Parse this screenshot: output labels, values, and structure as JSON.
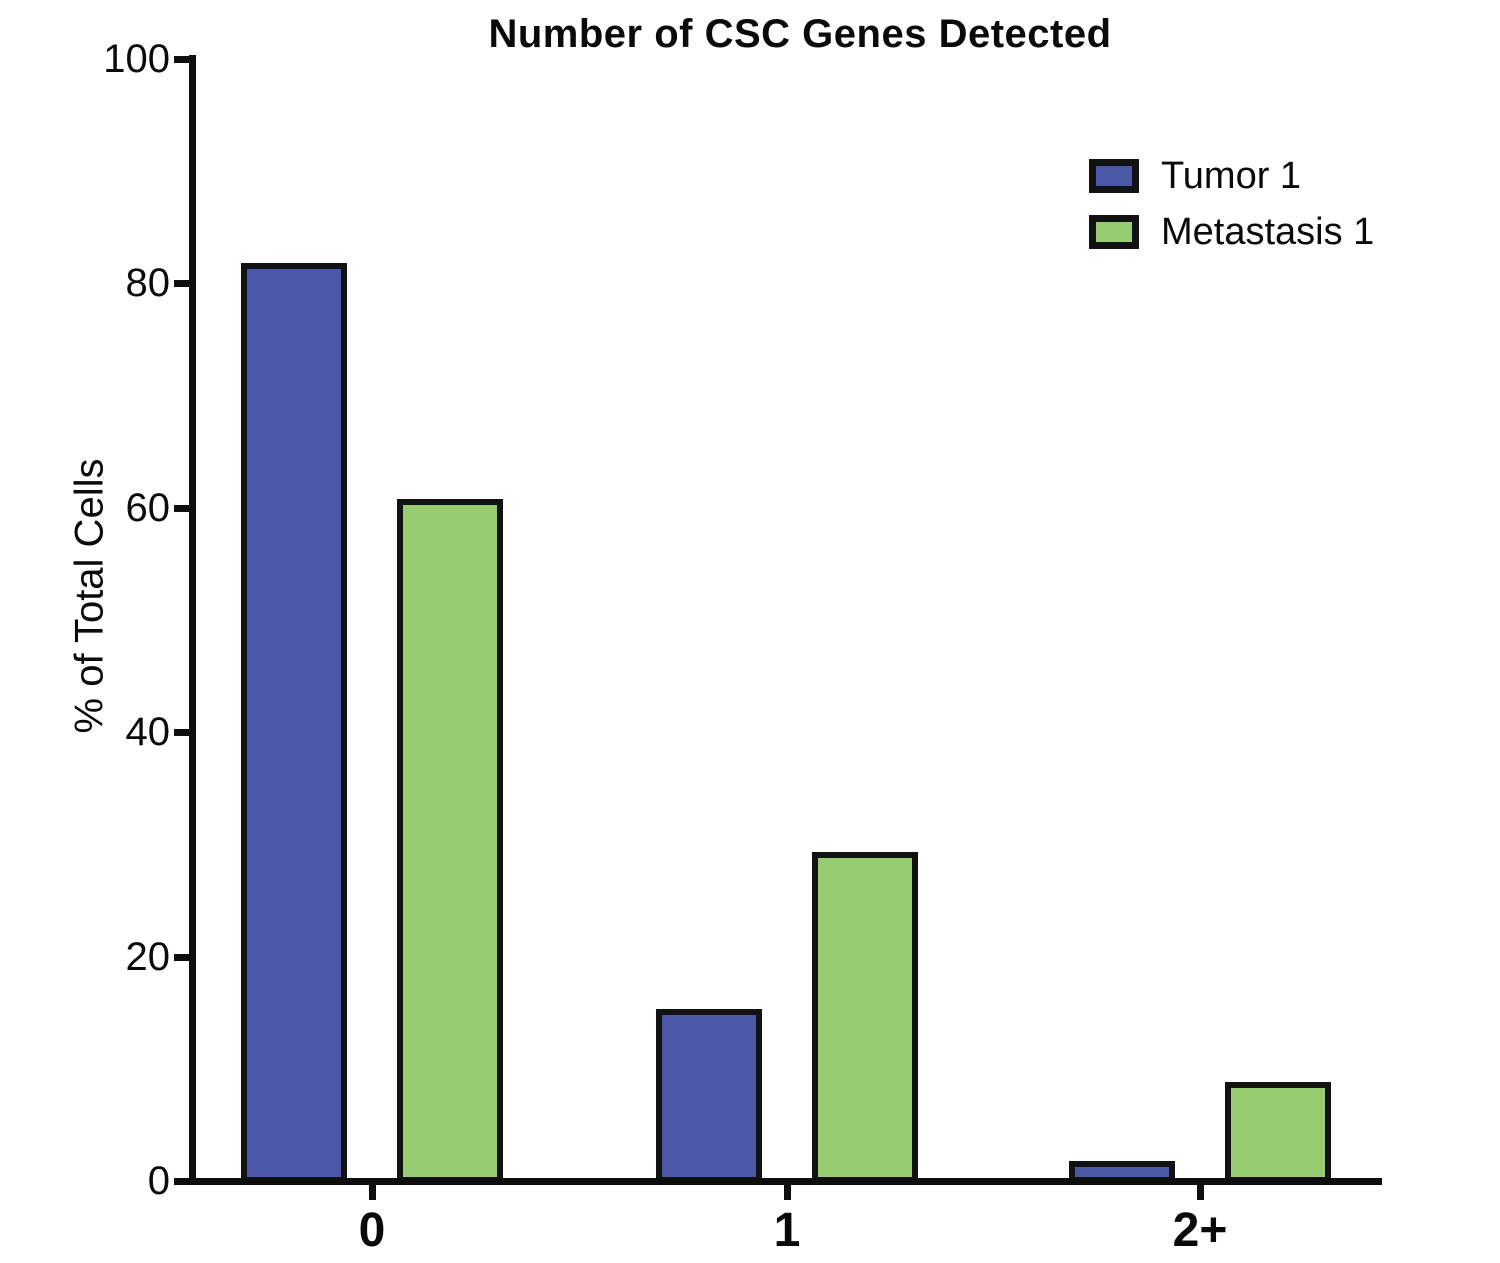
{
  "chart_data": {
    "type": "bar",
    "title": "Number of CSC Genes Detected",
    "xlabel": "",
    "ylabel": "% of Total Cells",
    "categories": [
      "0",
      "1",
      "2+"
    ],
    "series": [
      {
        "name": "Tumor 1",
        "color": "#4B57A7",
        "values": [
          82,
          15.5,
          2
        ]
      },
      {
        "name": "Metastasis 1",
        "color": "#97CC71",
        "values": [
          61,
          29.5,
          9
        ]
      }
    ],
    "ylim": [
      0,
      100
    ],
    "yticks": [
      0,
      20,
      40,
      60,
      80,
      100
    ],
    "grid": false,
    "legend_position": "upper-right",
    "bar_outline_color": "#121212",
    "axis_color": "#0e0e0e"
  }
}
